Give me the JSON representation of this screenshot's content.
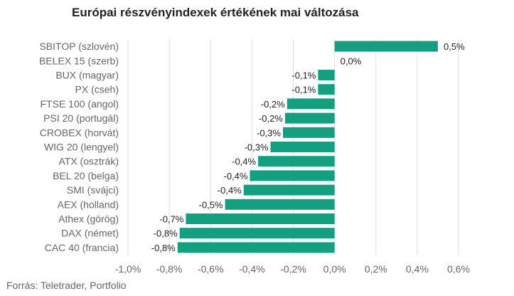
{
  "chart_data": {
    "type": "bar",
    "orientation": "horizontal",
    "title": "Európai részvényindexek értékének mai változása",
    "source": "Forrás: Teletrader, Portfolio",
    "categories": [
      "SBITOP (szlovén)",
      "BELEX 15 (szerb)",
      "BUX (magyar)",
      "PX (cseh)",
      "FTSE 100 (angol)",
      "PSI 20 (portugál)",
      "CROBEX (horvát)",
      "WIG 20 (lengyel)",
      "ATX (osztrák)",
      "BEL 20 (belga)",
      "SMI (svájci)",
      "AEX (holland)",
      "Athex (görög)",
      "DAX (német)",
      "CAC 40 (francia)"
    ],
    "values": [
      0.5,
      0.0,
      -0.08,
      -0.08,
      -0.23,
      -0.24,
      -0.25,
      -0.31,
      -0.37,
      -0.41,
      -0.44,
      -0.53,
      -0.72,
      -0.75,
      -0.76
    ],
    "value_labels": [
      "0,5%",
      "0,0%",
      "-0,1%",
      "-0,1%",
      "-0,2%",
      "-0,2%",
      "-0,3%",
      "-0,3%",
      "-0,4%",
      "-0,4%",
      "-0,4%",
      "-0,5%",
      "-0,7%",
      "-0,8%",
      "-0,8%"
    ],
    "xlim": [
      -1.0,
      0.6
    ],
    "x_ticks": [
      -1.0,
      -0.8,
      -0.6,
      -0.4,
      -0.2,
      0.0,
      0.2,
      0.4,
      0.6
    ],
    "x_tick_labels": [
      "-1,0%",
      "-0,8%",
      "-0,6%",
      "-0,4%",
      "-0,2%",
      "0,0%",
      "0,2%",
      "0,4%",
      "0,6%"
    ],
    "grid": true,
    "bar_color": "#12a080",
    "grid_color": "#dddddd"
  }
}
